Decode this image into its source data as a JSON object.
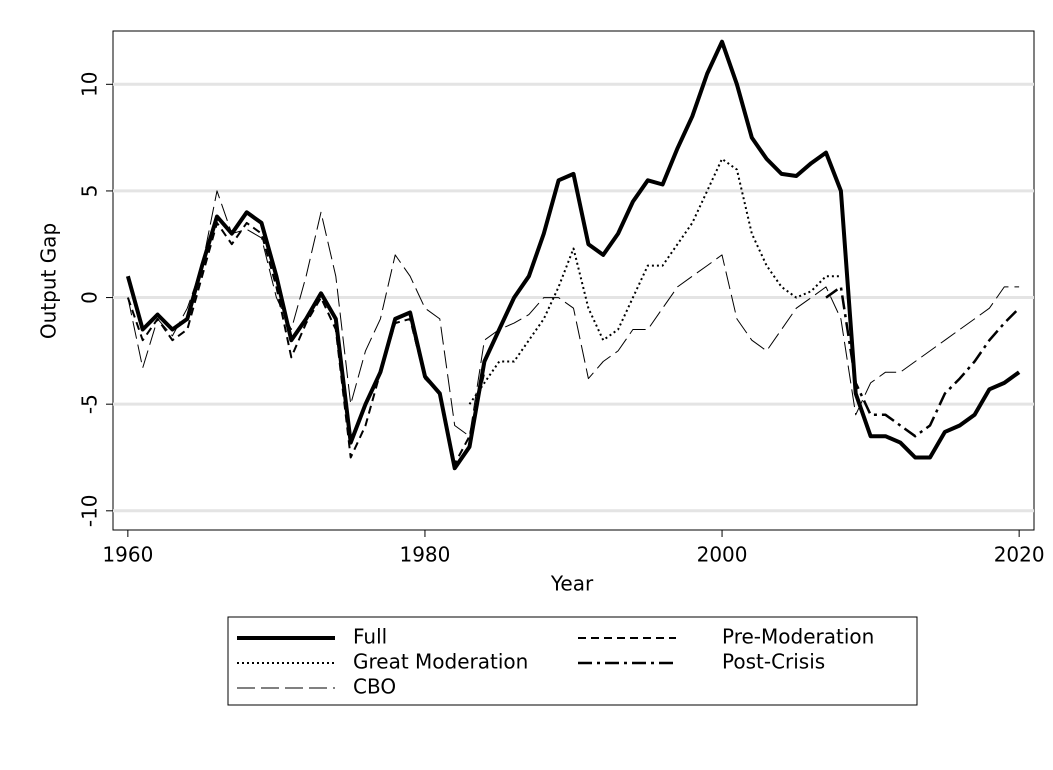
{
  "chart_data": {
    "type": "line",
    "x_label": "Year",
    "y_label": "Output Gap",
    "x": [
      1960,
      1961,
      1962,
      1963,
      1964,
      1965,
      1966,
      1967,
      1968,
      1969,
      1970,
      1971,
      1972,
      1973,
      1974,
      1975,
      1976,
      1977,
      1978,
      1979,
      1980,
      1981,
      1982,
      1983,
      1984,
      1985,
      1986,
      1987,
      1988,
      1989,
      1990,
      1991,
      1992,
      1993,
      1994,
      1995,
      1996,
      1997,
      1998,
      1999,
      2000,
      2001,
      2002,
      2003,
      2004,
      2005,
      2006,
      2007,
      2008,
      2009,
      2010,
      2011,
      2012,
      2013,
      2014,
      2015,
      2016,
      2017,
      2018,
      2019,
      2020
    ],
    "xlim": [
      1959,
      2021
    ],
    "xticks": [
      1960,
      1980,
      2000,
      2020
    ],
    "ylim": [
      -10.9,
      12.5
    ],
    "yticks": [
      -10,
      -5,
      0,
      5,
      10
    ],
    "grid": true,
    "series": [
      {
        "name": "Full",
        "color": "#000000",
        "width": 4,
        "dash": "none",
        "values": [
          1,
          -1.5,
          -0.8,
          -1.5,
          -1,
          1.5,
          3.8,
          3,
          4,
          3.5,
          1,
          -2,
          -1,
          0.2,
          -1,
          -6.8,
          -5,
          -3.5,
          -1,
          -0.7,
          -3.7,
          -4.5,
          -8,
          -7,
          -3,
          -1.5,
          0,
          1,
          3,
          5.5,
          5.8,
          2.5,
          2,
          3,
          4.5,
          5.5,
          5.3,
          7,
          8.5,
          10.5,
          12,
          10,
          7.5,
          6.5,
          5.8,
          5.7,
          6.3,
          6.8,
          5,
          -4.5,
          -6.5,
          -6.5,
          -6.8,
          -7.5,
          -7.5,
          -6.3,
          -6,
          -5.5,
          -4.3,
          -4,
          -3.5
        ]
      },
      {
        "name": "Pre-Moderation",
        "color": "#000000",
        "width": 2,
        "dash": "8 5",
        "values": [
          0,
          -2,
          -1,
          -2,
          -1.5,
          1,
          3.5,
          2.5,
          3.5,
          3,
          0.5,
          -2.8,
          -1.2,
          0,
          -1.5,
          -7.5,
          -6,
          -3.5,
          -1.2,
          -1,
          -3.8,
          -4.5,
          -7.8,
          -6.5,
          -3.5,
          null,
          null,
          null,
          null,
          null,
          null,
          null,
          null,
          null,
          null,
          null,
          null,
          null,
          null,
          null,
          null,
          null,
          null,
          null,
          null,
          null,
          null,
          null,
          null,
          null,
          null,
          null,
          null,
          null,
          null,
          null,
          null,
          null,
          null,
          null,
          null
        ]
      },
      {
        "name": "Great Moderation",
        "color": "#000000",
        "width": 2,
        "dash": "2 3",
        "values": [
          null,
          null,
          null,
          null,
          null,
          null,
          null,
          null,
          null,
          null,
          null,
          null,
          null,
          null,
          null,
          null,
          null,
          null,
          null,
          null,
          null,
          null,
          null,
          -5,
          -4,
          -3,
          -3,
          -2,
          -1,
          0.5,
          2.3,
          -0.5,
          -2,
          -1.5,
          0,
          1.5,
          1.5,
          2.5,
          3.5,
          5,
          6.5,
          6,
          3,
          1.5,
          0.5,
          0,
          0.3,
          1,
          1,
          null,
          null,
          null,
          null,
          null,
          null,
          null,
          null,
          null,
          null,
          null,
          null
        ]
      },
      {
        "name": "Post-Crisis",
        "color": "#000000",
        "width": 2.5,
        "dash": "14 5 3 5",
        "values": [
          null,
          null,
          null,
          null,
          null,
          null,
          null,
          null,
          null,
          null,
          null,
          null,
          null,
          null,
          null,
          null,
          null,
          null,
          null,
          null,
          null,
          null,
          null,
          null,
          null,
          null,
          null,
          null,
          null,
          null,
          null,
          null,
          null,
          null,
          null,
          null,
          null,
          null,
          null,
          null,
          null,
          null,
          null,
          null,
          null,
          null,
          null,
          0,
          0.5,
          -4,
          -5.5,
          -5.5,
          -6,
          -6.5,
          -6,
          -4.5,
          -3.8,
          -3,
          -2,
          -1.2,
          -0.5
        ]
      },
      {
        "name": "CBO",
        "color": "#000000",
        "width": 1,
        "dash": "18 6",
        "values": [
          0,
          -3.3,
          -1,
          -1.8,
          -0.5,
          1.5,
          5,
          3,
          3.2,
          2.8,
          0,
          -1.5,
          1,
          4,
          1,
          -5,
          -2.5,
          -1,
          2,
          1,
          -0.5,
          -1,
          -6,
          -6.5,
          -2,
          -1.5,
          -1.2,
          -0.8,
          0,
          0,
          -0.5,
          -3.8,
          -3,
          -2.5,
          -1.5,
          -1.5,
          -0.5,
          0.5,
          1,
          1.5,
          2,
          -1,
          -2,
          -2.5,
          -1.5,
          -0.5,
          0,
          0.5,
          -1,
          -5.5,
          -4,
          -3.5,
          -3.5,
          -3,
          -2.5,
          -2,
          -1.5,
          -1,
          -0.5,
          0.5,
          0.5
        ]
      }
    ]
  }
}
